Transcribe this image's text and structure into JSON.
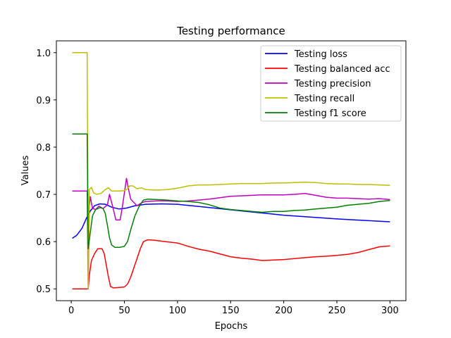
{
  "chart_data": {
    "type": "line",
    "title": "Testing performance",
    "xlabel": "Epochs",
    "ylabel": "Values",
    "xlim": [
      -14,
      315
    ],
    "ylim": [
      0.475,
      1.025
    ],
    "xticks": [
      0,
      50,
      100,
      150,
      200,
      250,
      300
    ],
    "yticks": [
      0.5,
      0.6,
      0.7,
      0.8,
      0.9,
      1.0
    ],
    "ytick_labels": [
      "0.5",
      "0.6",
      "0.7",
      "0.8",
      "0.9",
      "1.0"
    ],
    "grid": false,
    "legend_position": "top-right",
    "series": [
      {
        "name": "Testing loss",
        "color": "#0000ff",
        "points": [
          [
            1,
            0.607
          ],
          [
            5,
            0.613
          ],
          [
            10,
            0.628
          ],
          [
            14,
            0.648
          ],
          [
            18,
            0.665
          ],
          [
            22,
            0.676
          ],
          [
            27,
            0.68
          ],
          [
            32,
            0.679
          ],
          [
            38,
            0.673
          ],
          [
            45,
            0.669
          ],
          [
            52,
            0.671
          ],
          [
            60,
            0.676
          ],
          [
            70,
            0.679
          ],
          [
            85,
            0.68
          ],
          [
            100,
            0.679
          ],
          [
            130,
            0.672
          ],
          [
            160,
            0.665
          ],
          [
            200,
            0.656
          ],
          [
            250,
            0.648
          ],
          [
            300,
            0.642
          ]
        ]
      },
      {
        "name": "Testing balanced acc",
        "color": "#ff0000",
        "points": [
          [
            1,
            0.5
          ],
          [
            15,
            0.5
          ],
          [
            16,
            0.5
          ],
          [
            17,
            0.528
          ],
          [
            19,
            0.56
          ],
          [
            22,
            0.575
          ],
          [
            25,
            0.585
          ],
          [
            29,
            0.585
          ],
          [
            31,
            0.575
          ],
          [
            33,
            0.55
          ],
          [
            35,
            0.525
          ],
          [
            37,
            0.505
          ],
          [
            40,
            0.502
          ],
          [
            45,
            0.503
          ],
          [
            50,
            0.504
          ],
          [
            53,
            0.51
          ],
          [
            56,
            0.525
          ],
          [
            59,
            0.545
          ],
          [
            62,
            0.565
          ],
          [
            65,
            0.585
          ],
          [
            68,
            0.6
          ],
          [
            72,
            0.604
          ],
          [
            78,
            0.603
          ],
          [
            85,
            0.601
          ],
          [
            92,
            0.599
          ],
          [
            100,
            0.597
          ],
          [
            110,
            0.59
          ],
          [
            120,
            0.584
          ],
          [
            130,
            0.58
          ],
          [
            140,
            0.574
          ],
          [
            150,
            0.568
          ],
          [
            160,
            0.565
          ],
          [
            170,
            0.563
          ],
          [
            180,
            0.56
          ],
          [
            190,
            0.561
          ],
          [
            200,
            0.562
          ],
          [
            210,
            0.564
          ],
          [
            220,
            0.566
          ],
          [
            230,
            0.568
          ],
          [
            240,
            0.569
          ],
          [
            250,
            0.571
          ],
          [
            260,
            0.573
          ],
          [
            270,
            0.577
          ],
          [
            280,
            0.583
          ],
          [
            290,
            0.589
          ],
          [
            300,
            0.591
          ]
        ]
      },
      {
        "name": "Testing precision",
        "color": "#bf00bf",
        "points": [
          [
            1,
            0.707
          ],
          [
            15,
            0.707
          ],
          [
            16,
            0.5
          ],
          [
            17,
            0.675
          ],
          [
            18,
            0.695
          ],
          [
            20,
            0.67
          ],
          [
            23,
            0.668
          ],
          [
            26,
            0.675
          ],
          [
            30,
            0.67
          ],
          [
            34,
            0.678
          ],
          [
            36,
            0.7
          ],
          [
            38,
            0.683
          ],
          [
            40,
            0.665
          ],
          [
            42,
            0.646
          ],
          [
            46,
            0.646
          ],
          [
            48,
            0.672
          ],
          [
            50,
            0.703
          ],
          [
            52,
            0.734
          ],
          [
            54,
            0.71
          ],
          [
            56,
            0.69
          ],
          [
            58,
            0.685
          ],
          [
            62,
            0.676
          ],
          [
            66,
            0.682
          ],
          [
            70,
            0.685
          ],
          [
            80,
            0.686
          ],
          [
            90,
            0.686
          ],
          [
            100,
            0.685
          ],
          [
            110,
            0.686
          ],
          [
            120,
            0.688
          ],
          [
            130,
            0.69
          ],
          [
            140,
            0.693
          ],
          [
            150,
            0.696
          ],
          [
            160,
            0.697
          ],
          [
            170,
            0.698
          ],
          [
            180,
            0.699
          ],
          [
            200,
            0.699
          ],
          [
            210,
            0.7
          ],
          [
            220,
            0.702
          ],
          [
            230,
            0.698
          ],
          [
            240,
            0.694
          ],
          [
            250,
            0.692
          ],
          [
            260,
            0.692
          ],
          [
            270,
            0.691
          ],
          [
            280,
            0.69
          ],
          [
            290,
            0.691
          ],
          [
            300,
            0.689
          ]
        ]
      },
      {
        "name": "Testing recall",
        "color": "#bfbf00",
        "points": [
          [
            1,
            1.0
          ],
          [
            15,
            1.0
          ],
          [
            16,
            0.5
          ],
          [
            17,
            0.71
          ],
          [
            19,
            0.715
          ],
          [
            21,
            0.703
          ],
          [
            24,
            0.7
          ],
          [
            28,
            0.702
          ],
          [
            32,
            0.71
          ],
          [
            35,
            0.714
          ],
          [
            38,
            0.707
          ],
          [
            45,
            0.707
          ],
          [
            50,
            0.708
          ],
          [
            53,
            0.712
          ],
          [
            55,
            0.718
          ],
          [
            58,
            0.718
          ],
          [
            62,
            0.712
          ],
          [
            66,
            0.714
          ],
          [
            70,
            0.71
          ],
          [
            80,
            0.709
          ],
          [
            90,
            0.71
          ],
          [
            100,
            0.713
          ],
          [
            110,
            0.718
          ],
          [
            120,
            0.72
          ],
          [
            130,
            0.72
          ],
          [
            140,
            0.721
          ],
          [
            150,
            0.722
          ],
          [
            160,
            0.723
          ],
          [
            170,
            0.723
          ],
          [
            180,
            0.723
          ],
          [
            190,
            0.724
          ],
          [
            200,
            0.724
          ],
          [
            210,
            0.725
          ],
          [
            220,
            0.726
          ],
          [
            230,
            0.725
          ],
          [
            240,
            0.723
          ],
          [
            250,
            0.722
          ],
          [
            260,
            0.722
          ],
          [
            270,
            0.721
          ],
          [
            280,
            0.721
          ],
          [
            290,
            0.72
          ],
          [
            300,
            0.719
          ]
        ]
      },
      {
        "name": "Testing f1 score",
        "color": "#008000",
        "points": [
          [
            1,
            0.828
          ],
          [
            15,
            0.828
          ],
          [
            16,
            0.585
          ],
          [
            18,
            0.62
          ],
          [
            20,
            0.655
          ],
          [
            23,
            0.668
          ],
          [
            27,
            0.672
          ],
          [
            30,
            0.67
          ],
          [
            32,
            0.66
          ],
          [
            34,
            0.635
          ],
          [
            36,
            0.608
          ],
          [
            38,
            0.593
          ],
          [
            41,
            0.588
          ],
          [
            46,
            0.588
          ],
          [
            50,
            0.59
          ],
          [
            53,
            0.6
          ],
          [
            56,
            0.625
          ],
          [
            60,
            0.655
          ],
          [
            64,
            0.675
          ],
          [
            68,
            0.688
          ],
          [
            72,
            0.69
          ],
          [
            80,
            0.689
          ],
          [
            90,
            0.688
          ],
          [
            100,
            0.686
          ],
          [
            110,
            0.685
          ],
          [
            120,
            0.683
          ],
          [
            130,
            0.678
          ],
          [
            140,
            0.671
          ],
          [
            150,
            0.668
          ],
          [
            160,
            0.666
          ],
          [
            170,
            0.664
          ],
          [
            180,
            0.662
          ],
          [
            190,
            0.664
          ],
          [
            200,
            0.664
          ],
          [
            210,
            0.666
          ],
          [
            220,
            0.667
          ],
          [
            230,
            0.669
          ],
          [
            240,
            0.671
          ],
          [
            250,
            0.673
          ],
          [
            260,
            0.677
          ],
          [
            270,
            0.679
          ],
          [
            280,
            0.681
          ],
          [
            290,
            0.685
          ],
          [
            300,
            0.687
          ]
        ]
      }
    ]
  }
}
